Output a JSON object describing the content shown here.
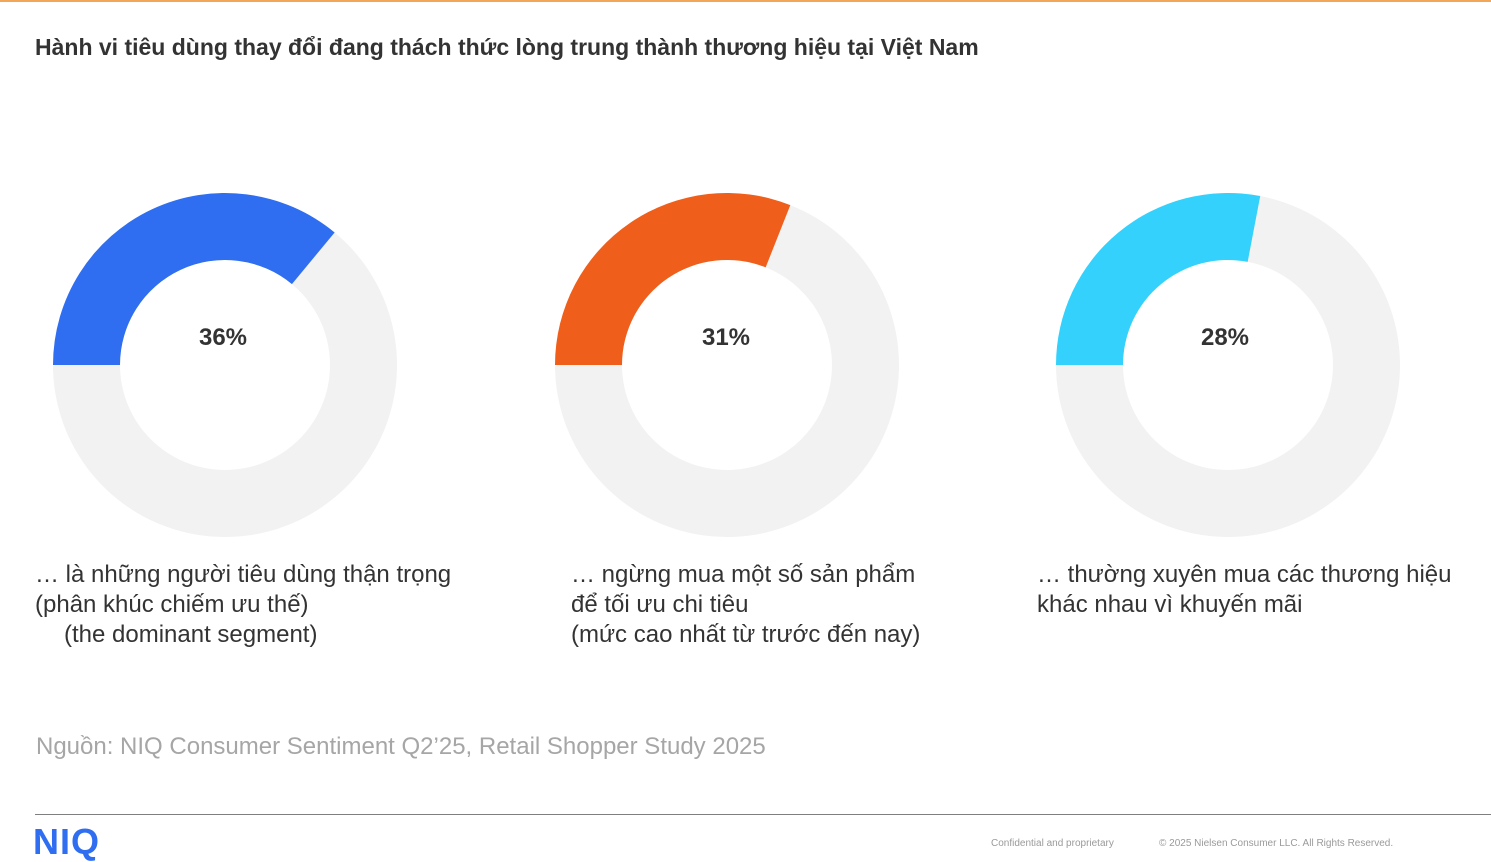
{
  "title": "Hành vi tiêu dùng thay đổi đang thách thức lòng trung thành thương hiệu tại Việt Nam",
  "chart_data": [
    {
      "type": "pie",
      "values": [
        36,
        64
      ],
      "label": "36%",
      "highlight_color": "#2f6ef0",
      "track_color": "#f2f2f2",
      "caption": [
        "… là những người tiêu dùng thận trọng",
        "(phân khúc chiếm ưu thế)",
        "(the dominant segment)"
      ]
    },
    {
      "type": "pie",
      "values": [
        31,
        69
      ],
      "label": "31%",
      "highlight_color": "#ef5e1a",
      "track_color": "#f2f2f2",
      "caption": [
        "… ngừng mua một số sản phẩm",
        "để tối ưu chi tiêu",
        "(mức cao nhất từ trước đến nay)"
      ]
    },
    {
      "type": "pie",
      "values": [
        28,
        72
      ],
      "label": "28%",
      "highlight_color": "#33d1fb",
      "track_color": "#f2f2f2",
      "caption": [
        "… thường xuyên mua các thương hiệu",
        "khác nhau vì khuyến mãi"
      ]
    }
  ],
  "source": "Nguồn: NIQ Consumer Sentiment Q2’25, Retail Shopper Study 2025",
  "footer": {
    "logo": "NIQ",
    "confidential": "Confidential and proprietary",
    "copyright": "© 2025 Nielsen Consumer LLC. All Rights Reserved."
  }
}
